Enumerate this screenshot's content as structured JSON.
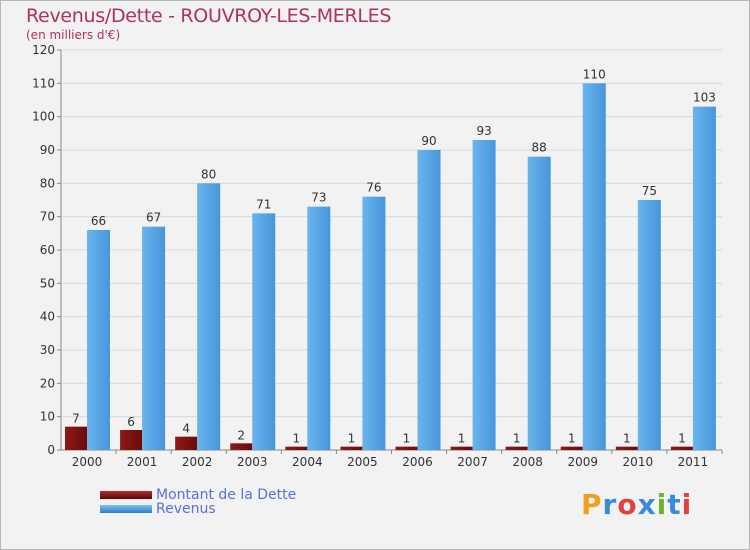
{
  "chart_data": {
    "type": "bar",
    "title": "Revenus/Dette - ROUVROY-LES-MERLES",
    "subtitle": "(en milliers d'€)",
    "categories": [
      "2000",
      "2001",
      "2002",
      "2003",
      "2004",
      "2005",
      "2006",
      "2007",
      "2008",
      "2009",
      "2010",
      "2011"
    ],
    "series": [
      {
        "name": "Montant de la Dette",
        "values": [
          7,
          6,
          4,
          2,
          1,
          1,
          1,
          1,
          1,
          1,
          1,
          1
        ],
        "color": "#7a0e0e"
      },
      {
        "name": "Revenus",
        "values": [
          66,
          67,
          80,
          71,
          73,
          76,
          90,
          93,
          88,
          110,
          75,
          103
        ],
        "color": "#4a9fe0"
      }
    ],
    "ylim": [
      0,
      120
    ],
    "yticks": [
      0,
      10,
      20,
      30,
      40,
      50,
      60,
      70,
      80,
      90,
      100,
      110,
      120
    ],
    "grid": true,
    "legend": "bottom-left"
  },
  "legend": {
    "items": [
      {
        "label": "Montant de la Dette",
        "color": "#7a0e0e"
      },
      {
        "label": "Revenus",
        "color": "#4a9fe0"
      }
    ]
  },
  "logo": {
    "letters": [
      "P",
      "r",
      "o",
      "x",
      "i",
      "t",
      "i"
    ],
    "colors": [
      "#f0a020",
      "#3a8ad8",
      "#e04040",
      "#3a8ad8",
      "#70b030",
      "#3a8ad8",
      "#e04040"
    ]
  }
}
